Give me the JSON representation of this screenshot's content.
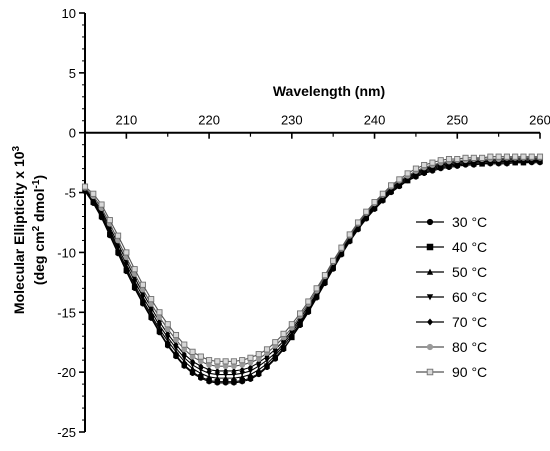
{
  "chart_data": {
    "type": "line",
    "xlabel": "Wavelength (nm)",
    "ylabel": [
      "Molecular Ellipticity x 10",
      "3",
      "(deg cm",
      "2",
      " dmol",
      "-1",
      ")"
    ],
    "xlim": [
      205,
      260
    ],
    "ylim": [
      -25,
      10
    ],
    "x_ticks": [
      210,
      220,
      230,
      240,
      250,
      260
    ],
    "y_ticks": [
      10,
      5,
      0,
      -5,
      -10,
      -15,
      -20,
      -25
    ],
    "x_axis_position": "top, crossing at y = 0",
    "grid": false,
    "legend_position": "right",
    "x": [
      205,
      206,
      207,
      208,
      209,
      210,
      211,
      212,
      213,
      214,
      215,
      216,
      217,
      218,
      219,
      220,
      221,
      222,
      223,
      224,
      225,
      226,
      227,
      228,
      229,
      230,
      231,
      232,
      233,
      234,
      235,
      236,
      237,
      238,
      239,
      240,
      241,
      242,
      243,
      244,
      245,
      246,
      247,
      248,
      249,
      250,
      251,
      252,
      253,
      254,
      255,
      256,
      257,
      258,
      259,
      260
    ],
    "series": [
      {
        "name": "30 °C",
        "marker": "circle",
        "color": "#000000",
        "values": [
          -4.9,
          -5.9,
          -7.1,
          -8.6,
          -10.1,
          -11.6,
          -13.0,
          -14.3,
          -15.5,
          -16.7,
          -17.8,
          -18.7,
          -19.5,
          -20.1,
          -20.5,
          -20.8,
          -20.9,
          -20.9,
          -20.9,
          -20.8,
          -20.6,
          -20.2,
          -19.6,
          -18.9,
          -18.1,
          -17.1,
          -16.1,
          -15.0,
          -13.8,
          -12.6,
          -11.4,
          -10.2,
          -9.1,
          -8.1,
          -7.2,
          -6.4,
          -5.7,
          -5.0,
          -4.5,
          -4.0,
          -3.7,
          -3.4,
          -3.2,
          -3.0,
          -2.9,
          -2.8,
          -2.7,
          -2.7,
          -2.6,
          -2.6,
          -2.6,
          -2.6,
          -2.5,
          -2.5,
          -2.5,
          -2.5
        ]
      },
      {
        "name": "40 °C",
        "marker": "square",
        "color": "#000000",
        "values": [
          -4.8,
          -5.8,
          -7.0,
          -8.5,
          -10.0,
          -11.5,
          -12.9,
          -14.2,
          -15.4,
          -16.6,
          -17.7,
          -18.6,
          -19.4,
          -20.0,
          -20.4,
          -20.7,
          -20.8,
          -20.8,
          -20.8,
          -20.7,
          -20.5,
          -20.1,
          -19.5,
          -18.8,
          -18.0,
          -17.1,
          -16.0,
          -14.9,
          -13.7,
          -12.5,
          -11.3,
          -10.1,
          -9.0,
          -8.0,
          -7.1,
          -6.3,
          -5.6,
          -4.9,
          -4.4,
          -4.0,
          -3.6,
          -3.3,
          -3.1,
          -2.9,
          -2.8,
          -2.7,
          -2.6,
          -2.6,
          -2.6,
          -2.5,
          -2.5,
          -2.5,
          -2.5,
          -2.5,
          -2.4,
          -2.4
        ]
      },
      {
        "name": "50 °C",
        "marker": "triangle-up",
        "color": "#000000",
        "values": [
          -4.8,
          -5.7,
          -6.9,
          -8.3,
          -9.8,
          -11.3,
          -12.7,
          -14.0,
          -15.2,
          -16.4,
          -17.4,
          -18.3,
          -19.1,
          -19.7,
          -20.1,
          -20.4,
          -20.5,
          -20.5,
          -20.5,
          -20.4,
          -20.2,
          -19.8,
          -19.3,
          -18.6,
          -17.8,
          -16.9,
          -15.9,
          -14.8,
          -13.6,
          -12.4,
          -11.2,
          -10.0,
          -8.9,
          -7.9,
          -7.0,
          -6.2,
          -5.5,
          -4.8,
          -4.3,
          -3.9,
          -3.5,
          -3.2,
          -3.0,
          -2.8,
          -2.7,
          -2.6,
          -2.6,
          -2.5,
          -2.5,
          -2.5,
          -2.4,
          -2.4,
          -2.4,
          -2.4,
          -2.4,
          -2.3
        ]
      },
      {
        "name": "60 °C",
        "marker": "triangle-down",
        "color": "#000000",
        "values": [
          -4.7,
          -5.6,
          -6.7,
          -8.1,
          -9.6,
          -11.0,
          -12.4,
          -13.7,
          -14.9,
          -16.1,
          -17.1,
          -18.0,
          -18.8,
          -19.4,
          -19.8,
          -20.1,
          -20.2,
          -20.2,
          -20.2,
          -20.1,
          -19.9,
          -19.5,
          -19.0,
          -18.4,
          -17.6,
          -16.7,
          -15.7,
          -14.7,
          -13.5,
          -12.3,
          -11.1,
          -9.9,
          -8.8,
          -7.8,
          -6.9,
          -6.1,
          -5.4,
          -4.7,
          -4.2,
          -3.8,
          -3.4,
          -3.1,
          -2.9,
          -2.7,
          -2.6,
          -2.5,
          -2.5,
          -2.4,
          -2.4,
          -2.4,
          -2.3,
          -2.3,
          -2.3,
          -2.3,
          -2.3,
          -2.3
        ]
      },
      {
        "name": "70 °C",
        "marker": "diamond",
        "color": "#000000",
        "values": [
          -4.7,
          -5.5,
          -6.5,
          -7.9,
          -9.3,
          -10.7,
          -12.1,
          -13.4,
          -14.6,
          -15.8,
          -16.8,
          -17.7,
          -18.5,
          -19.1,
          -19.5,
          -19.8,
          -19.9,
          -19.9,
          -19.9,
          -19.8,
          -19.6,
          -19.2,
          -18.7,
          -18.1,
          -17.4,
          -16.5,
          -15.5,
          -14.5,
          -13.4,
          -12.2,
          -11.0,
          -9.8,
          -8.7,
          -7.7,
          -6.8,
          -6.0,
          -5.3,
          -4.6,
          -4.1,
          -3.7,
          -3.3,
          -3.0,
          -2.8,
          -2.6,
          -2.5,
          -2.4,
          -2.4,
          -2.3,
          -2.3,
          -2.3,
          -2.2,
          -2.2,
          -2.2,
          -2.2,
          -2.2,
          -2.2
        ]
      },
      {
        "name": "80 °C",
        "marker": "circle",
        "color": "#9a9a9a",
        "values": [
          -4.6,
          -5.3,
          -6.3,
          -7.6,
          -9.0,
          -10.4,
          -11.8,
          -13.1,
          -14.3,
          -15.4,
          -16.4,
          -17.3,
          -18.1,
          -18.7,
          -19.1,
          -19.4,
          -19.5,
          -19.5,
          -19.5,
          -19.4,
          -19.2,
          -18.9,
          -18.4,
          -17.8,
          -17.1,
          -16.3,
          -15.3,
          -14.3,
          -13.2,
          -12.0,
          -10.8,
          -9.7,
          -8.6,
          -7.6,
          -6.7,
          -5.9,
          -5.2,
          -4.5,
          -4.0,
          -3.6,
          -3.2,
          -2.9,
          -2.7,
          -2.5,
          -2.4,
          -2.3,
          -2.3,
          -2.2,
          -2.2,
          -2.2,
          -2.2,
          -2.1,
          -2.1,
          -2.1,
          -2.1,
          -2.1
        ]
      },
      {
        "name": "90 °C",
        "marker": "square",
        "color": "#9a9a9a",
        "values": [
          -4.5,
          -5.1,
          -6.0,
          -7.3,
          -8.6,
          -10.0,
          -11.4,
          -12.7,
          -13.9,
          -15.0,
          -16.0,
          -16.9,
          -17.7,
          -18.3,
          -18.7,
          -19.0,
          -19.1,
          -19.1,
          -19.1,
          -19.0,
          -18.8,
          -18.5,
          -18.1,
          -17.5,
          -16.8,
          -16.0,
          -15.1,
          -14.1,
          -13.0,
          -11.9,
          -10.7,
          -9.6,
          -8.5,
          -7.5,
          -6.6,
          -5.8,
          -5.1,
          -4.4,
          -3.9,
          -3.4,
          -3.0,
          -2.7,
          -2.5,
          -2.3,
          -2.2,
          -2.2,
          -2.1,
          -2.1,
          -2.1,
          -2.0,
          -2.0,
          -2.0,
          -2.0,
          -2.0,
          -2.0,
          -2.0
        ]
      }
    ]
  }
}
